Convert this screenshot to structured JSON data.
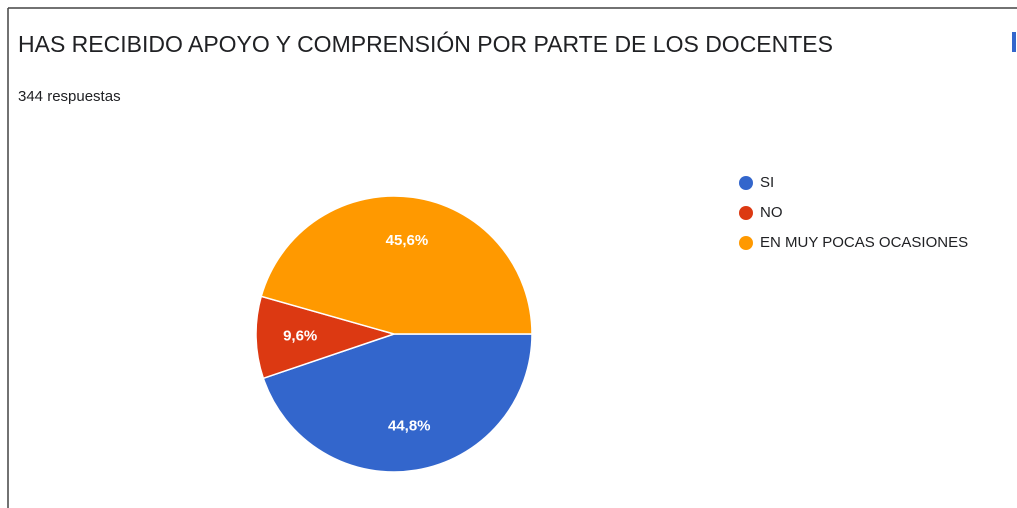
{
  "chart_data": {
    "type": "pie",
    "title": "HAS RECIBIDO APOYO Y COMPRENSIÓN POR PARTE DE LOS DOCENTES",
    "subtitle": "344 respuestas",
    "categories": [
      "SI",
      "NO",
      "EN MUY POCAS OCASIONES"
    ],
    "values": [
      44.8,
      9.6,
      45.6
    ],
    "value_labels": [
      "44,8%",
      "9,6%",
      "45,6%"
    ],
    "colors": [
      "#3366cc",
      "#dc3912",
      "#ff9900"
    ],
    "legend": "right"
  }
}
